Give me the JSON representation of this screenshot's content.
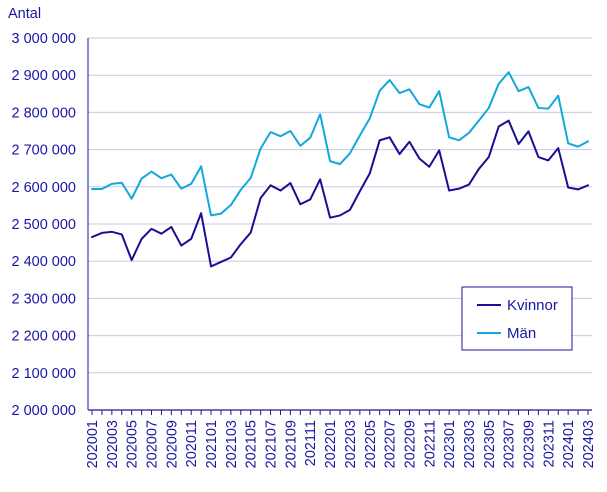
{
  "chart_data": {
    "type": "line",
    "ylabel": "Antal",
    "ylim": [
      2000000,
      3000000
    ],
    "yticks": [
      2000000,
      2100000,
      2200000,
      2300000,
      2400000,
      2500000,
      2600000,
      2700000,
      2800000,
      2900000,
      3000000
    ],
    "ytick_labels": [
      "2 000 000",
      "2 100 000",
      "2 200 000",
      "2 300 000",
      "2 400 000",
      "2 500 000",
      "2 600 000",
      "2 700 000",
      "2 800 000",
      "2 900 000",
      "3 000 000"
    ],
    "x": [
      "202001",
      "202002",
      "202003",
      "202004",
      "202005",
      "202006",
      "202007",
      "202008",
      "202009",
      "202010",
      "202011",
      "202012",
      "202101",
      "202102",
      "202103",
      "202104",
      "202105",
      "202106",
      "202107",
      "202108",
      "202109",
      "202110",
      "202111",
      "202112",
      "202201",
      "202202",
      "202203",
      "202204",
      "202205",
      "202206",
      "202207",
      "202208",
      "202209",
      "202210",
      "202211",
      "202212",
      "202301",
      "202302",
      "202303",
      "202304",
      "202305",
      "202306",
      "202307",
      "202308",
      "202309",
      "202310",
      "202311",
      "202312",
      "202401",
      "202402",
      "202403"
    ],
    "xtick_labels": [
      "202001",
      "202003",
      "202005",
      "202007",
      "202009",
      "202011",
      "202101",
      "202103",
      "202105",
      "202107",
      "202109",
      "202111",
      "202201",
      "202203",
      "202205",
      "202207",
      "202209",
      "202211",
      "202301",
      "202303",
      "202305",
      "202307",
      "202309",
      "202311",
      "202401",
      "202403"
    ],
    "grid": true,
    "legend_position": "lower-right",
    "series": [
      {
        "name": "Kvinnor",
        "color": "#1a0f91",
        "values": [
          2465000,
          2476000,
          2479000,
          2472000,
          2403000,
          2460000,
          2487000,
          2474000,
          2492000,
          2442000,
          2460000,
          2529000,
          2386000,
          2398000,
          2410000,
          2446000,
          2477000,
          2570000,
          2604000,
          2590000,
          2610000,
          2553000,
          2566000,
          2620000,
          2517000,
          2523000,
          2538000,
          2588000,
          2636000,
          2725000,
          2733000,
          2688000,
          2721000,
          2676000,
          2654000,
          2698000,
          2590000,
          2595000,
          2606000,
          2648000,
          2680000,
          2762000,
          2778000,
          2715000,
          2749000,
          2680000,
          2671000,
          2704000,
          2598000,
          2593000,
          2604000
        ]
      },
      {
        "name": "Män",
        "color": "#12a8db",
        "values": [
          2594000,
          2594000,
          2608000,
          2611000,
          2568000,
          2622000,
          2641000,
          2623000,
          2633000,
          2595000,
          2608000,
          2655000,
          2523000,
          2528000,
          2551000,
          2592000,
          2624000,
          2703000,
          2747000,
          2736000,
          2750000,
          2710000,
          2732000,
          2795000,
          2669000,
          2661000,
          2690000,
          2738000,
          2784000,
          2858000,
          2887000,
          2852000,
          2862000,
          2822000,
          2813000,
          2857000,
          2733000,
          2725000,
          2745000,
          2778000,
          2812000,
          2877000,
          2908000,
          2857000,
          2868000,
          2812000,
          2810000,
          2845000,
          2717000,
          2708000,
          2722000
        ]
      }
    ]
  }
}
